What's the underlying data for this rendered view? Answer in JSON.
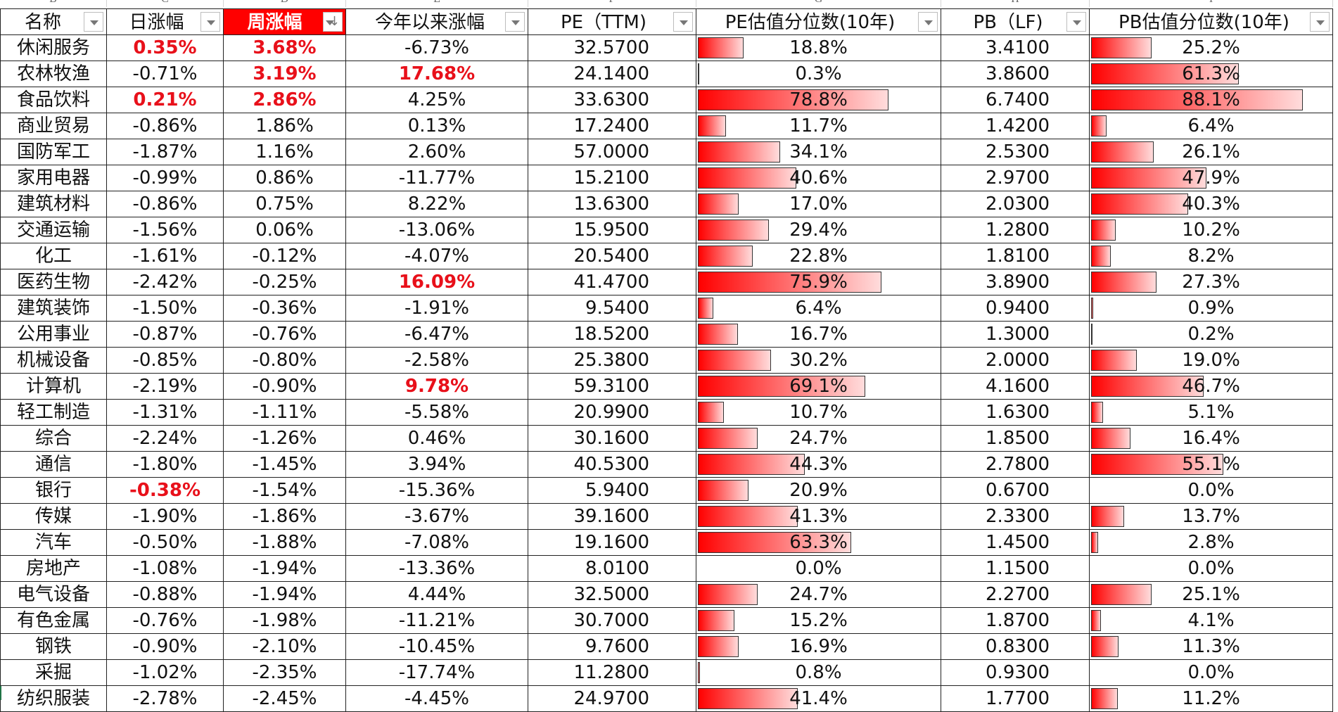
{
  "sheet": {
    "column_letters": [
      "B",
      "C",
      "D",
      "E",
      "F",
      "G",
      "H",
      "I"
    ],
    "headers": [
      {
        "label": "名称",
        "filter": "dropdown"
      },
      {
        "label": "日涨幅",
        "filter": "dropdown"
      },
      {
        "label": "周涨幅",
        "filter": "sorted-descending",
        "highlight": "#ff0000"
      },
      {
        "label": "今年以来涨幅",
        "filter": "dropdown"
      },
      {
        "label": "PE（TTM)",
        "filter": "dropdown"
      },
      {
        "label": "PE估值分位数(10年)",
        "filter": "dropdown"
      },
      {
        "label": "PB（LF)",
        "filter": "dropdown"
      },
      {
        "label": "PB估值分位数(10年)",
        "filter": "dropdown"
      }
    ],
    "colors": {
      "highlight_text": "#e8101a",
      "header_sorted_bg": "#ff0000",
      "bar_start": "#ff0000",
      "bar_end": "#ffdcdc"
    },
    "rows": [
      {
        "name": "休闲服务",
        "day": "0.35%",
        "week": "3.68%",
        "ytd": "-6.73%",
        "pe": "32.5700",
        "pe_pct": "18.8%",
        "pb": "3.4100",
        "pb_pct": "25.2%",
        "day_red": true,
        "week_red": true,
        "ytd_red": false
      },
      {
        "name": "农林牧渔",
        "day": "-0.71%",
        "week": "3.19%",
        "ytd": "17.68%",
        "pe": "24.1400",
        "pe_pct": "0.3%",
        "pb": "3.8600",
        "pb_pct": "61.3%",
        "day_red": false,
        "week_red": true,
        "ytd_red": true
      },
      {
        "name": "食品饮料",
        "day": "0.21%",
        "week": "2.86%",
        "ytd": "4.25%",
        "pe": "33.6300",
        "pe_pct": "78.8%",
        "pb": "6.7400",
        "pb_pct": "88.1%",
        "day_red": true,
        "week_red": true,
        "ytd_red": false
      },
      {
        "name": "商业贸易",
        "day": "-0.86%",
        "week": "1.86%",
        "ytd": "0.13%",
        "pe": "17.2400",
        "pe_pct": "11.7%",
        "pb": "1.4200",
        "pb_pct": "6.4%"
      },
      {
        "name": "国防军工",
        "day": "-1.87%",
        "week": "1.16%",
        "ytd": "2.60%",
        "pe": "57.0000",
        "pe_pct": "34.1%",
        "pb": "2.5300",
        "pb_pct": "26.1%"
      },
      {
        "name": "家用电器",
        "day": "-0.99%",
        "week": "0.86%",
        "ytd": "-11.77%",
        "pe": "15.2100",
        "pe_pct": "40.6%",
        "pb": "2.9700",
        "pb_pct": "47.9%"
      },
      {
        "name": "建筑材料",
        "day": "-0.86%",
        "week": "0.75%",
        "ytd": "8.22%",
        "pe": "13.6300",
        "pe_pct": "17.0%",
        "pb": "2.0300",
        "pb_pct": "40.3%"
      },
      {
        "name": "交通运输",
        "day": "-1.56%",
        "week": "0.06%",
        "ytd": "-13.06%",
        "pe": "15.9500",
        "pe_pct": "29.4%",
        "pb": "1.2800",
        "pb_pct": "10.2%"
      },
      {
        "name": "化工",
        "day": "-1.61%",
        "week": "-0.12%",
        "ytd": "-4.07%",
        "pe": "20.5400",
        "pe_pct": "22.8%",
        "pb": "1.8100",
        "pb_pct": "8.2%"
      },
      {
        "name": "医药生物",
        "day": "-2.42%",
        "week": "-0.25%",
        "ytd": "16.09%",
        "pe": "41.4700",
        "pe_pct": "75.9%",
        "pb": "3.8900",
        "pb_pct": "27.3%",
        "ytd_red": true
      },
      {
        "name": "建筑装饰",
        "day": "-1.50%",
        "week": "-0.36%",
        "ytd": "-1.91%",
        "pe": "9.5400",
        "pe_pct": "6.4%",
        "pb": "0.9400",
        "pb_pct": "0.9%"
      },
      {
        "name": "公用事业",
        "day": "-0.87%",
        "week": "-0.76%",
        "ytd": "-6.47%",
        "pe": "18.5200",
        "pe_pct": "16.7%",
        "pb": "1.3000",
        "pb_pct": "0.2%"
      },
      {
        "name": "机械设备",
        "day": "-0.85%",
        "week": "-0.80%",
        "ytd": "-2.58%",
        "pe": "25.3800",
        "pe_pct": "30.2%",
        "pb": "2.0000",
        "pb_pct": "19.0%"
      },
      {
        "name": "计算机",
        "day": "-2.19%",
        "week": "-0.90%",
        "ytd": "9.78%",
        "pe": "59.3100",
        "pe_pct": "69.1%",
        "pb": "4.1600",
        "pb_pct": "46.7%",
        "ytd_red": true
      },
      {
        "name": "轻工制造",
        "day": "-1.31%",
        "week": "-1.11%",
        "ytd": "-5.58%",
        "pe": "20.9900",
        "pe_pct": "10.7%",
        "pb": "1.6300",
        "pb_pct": "5.1%"
      },
      {
        "name": "综合",
        "day": "-2.24%",
        "week": "-1.26%",
        "ytd": "0.46%",
        "pe": "30.1600",
        "pe_pct": "24.7%",
        "pb": "1.8500",
        "pb_pct": "16.4%"
      },
      {
        "name": "通信",
        "day": "-1.80%",
        "week": "-1.45%",
        "ytd": "3.94%",
        "pe": "40.5300",
        "pe_pct": "44.3%",
        "pb": "2.7800",
        "pb_pct": "55.1%"
      },
      {
        "name": "银行",
        "day": "-0.38%",
        "week": "-1.54%",
        "ytd": "-15.36%",
        "pe": "5.9400",
        "pe_pct": "20.9%",
        "pb": "0.6700",
        "pb_pct": "0.0%",
        "day_red": true
      },
      {
        "name": "传媒",
        "day": "-1.90%",
        "week": "-1.86%",
        "ytd": "-3.67%",
        "pe": "39.1600",
        "pe_pct": "41.3%",
        "pb": "2.3300",
        "pb_pct": "13.7%"
      },
      {
        "name": "汽车",
        "day": "-0.50%",
        "week": "-1.88%",
        "ytd": "-7.08%",
        "pe": "19.1600",
        "pe_pct": "63.3%",
        "pb": "1.4500",
        "pb_pct": "2.8%"
      },
      {
        "name": "房地产",
        "day": "-1.08%",
        "week": "-1.94%",
        "ytd": "-13.36%",
        "pe": "8.0100",
        "pe_pct": "0.0%",
        "pb": "1.1500",
        "pb_pct": "0.0%"
      },
      {
        "name": "电气设备",
        "day": "-0.88%",
        "week": "-1.94%",
        "ytd": "4.44%",
        "pe": "32.5000",
        "pe_pct": "24.7%",
        "pb": "2.2700",
        "pb_pct": "25.1%"
      },
      {
        "name": "有色金属",
        "day": "-0.76%",
        "week": "-1.98%",
        "ytd": "-11.21%",
        "pe": "30.7000",
        "pe_pct": "15.2%",
        "pb": "1.8700",
        "pb_pct": "4.1%"
      },
      {
        "name": "钢铁",
        "day": "-0.90%",
        "week": "-2.10%",
        "ytd": "-10.45%",
        "pe": "9.7600",
        "pe_pct": "16.9%",
        "pb": "0.8300",
        "pb_pct": "11.3%"
      },
      {
        "name": "采掘",
        "day": "-1.02%",
        "week": "-2.35%",
        "ytd": "-17.74%",
        "pe": "11.2800",
        "pe_pct": "0.8%",
        "pb": "0.9300",
        "pb_pct": "0.0%"
      },
      {
        "name": "纺织服装",
        "day": "-2.78%",
        "week": "-2.45%",
        "ytd": "-4.45%",
        "pe": "24.9700",
        "pe_pct": "41.4%",
        "pb": "1.7700",
        "pb_pct": "11.2%"
      }
    ]
  }
}
